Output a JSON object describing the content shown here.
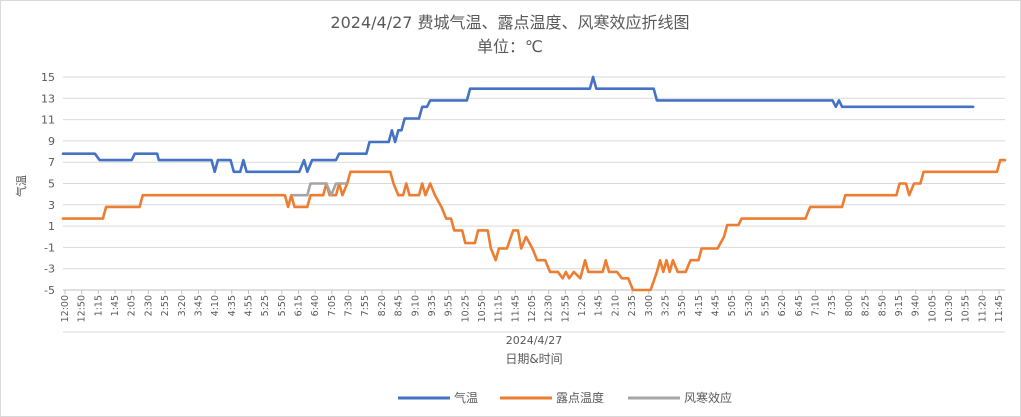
{
  "chart_data": {
    "type": "line",
    "title": "2024/4/27 费城气温、露点温度、风寒效应折线图",
    "subtitle": "单位：℃",
    "xlabel": "日期&时间",
    "x_group_label": "2024/4/27",
    "ylabel": "气温",
    "ylim": [
      -5,
      15
    ],
    "y_ticks": [
      -5,
      -3,
      -1,
      1,
      3,
      5,
      7,
      9,
      11,
      13,
      15
    ],
    "grid": true,
    "legend_position": "bottom",
    "x_tick_labels": [
      "12:00",
      "12:50",
      "1:15",
      "1:45",
      "2:05",
      "2:30",
      "2:55",
      "3:20",
      "3:45",
      "4:10",
      "4:35",
      "4:55",
      "5:25",
      "5:50",
      "6:15",
      "6:40",
      "7:05",
      "7:30",
      "7:55",
      "8:20",
      "8:45",
      "9:10",
      "9:35",
      "9:55",
      "10:25",
      "10:50",
      "11:15",
      "11:45",
      "12:05",
      "12:30",
      "12:55",
      "1:20",
      "1:45",
      "2:10",
      "2:35",
      "3:00",
      "3:25",
      "3:50",
      "4:15",
      "4:45",
      "5:05",
      "5:30",
      "5:55",
      "6:20",
      "6:45",
      "7:10",
      "7:35",
      "8:00",
      "8:25",
      "8:50",
      "9:15",
      "9:40",
      "10:05",
      "10:30",
      "10:55",
      "11:20",
      "11:45"
    ],
    "series": [
      {
        "name": "气温",
        "color": "#4472c4",
        "points": [
          [
            0,
            7.8
          ],
          [
            2,
            7.8
          ],
          [
            2.3,
            7.2
          ],
          [
            4.3,
            7.2
          ],
          [
            4.5,
            7.8
          ],
          [
            5.9,
            7.8
          ],
          [
            6,
            7.2
          ],
          [
            9.3,
            7.2
          ],
          [
            9.5,
            6.1
          ],
          [
            9.7,
            7.2
          ],
          [
            10.5,
            7.2
          ],
          [
            10.7,
            6.1
          ],
          [
            11.1,
            6.1
          ],
          [
            11.3,
            7.2
          ],
          [
            11.5,
            6.1
          ],
          [
            14.8,
            6.1
          ],
          [
            15.1,
            7.2
          ],
          [
            15.3,
            6.1
          ],
          [
            15.6,
            7.2
          ],
          [
            17.1,
            7.2
          ],
          [
            17.3,
            7.8
          ],
          [
            19,
            7.8
          ],
          [
            19.2,
            8.9
          ],
          [
            20.4,
            8.9
          ],
          [
            20.6,
            10
          ],
          [
            20.8,
            8.9
          ],
          [
            21,
            10
          ],
          [
            21.2,
            10
          ],
          [
            21.4,
            11.1
          ],
          [
            22.3,
            11.1
          ],
          [
            22.5,
            12.2
          ],
          [
            22.8,
            12.2
          ],
          [
            23,
            12.8
          ],
          [
            25.3,
            12.8
          ],
          [
            25.5,
            13.9
          ],
          [
            33,
            13.9
          ],
          [
            33.2,
            15
          ],
          [
            33.4,
            13.9
          ],
          [
            37,
            13.9
          ],
          [
            37.2,
            12.8
          ],
          [
            48.2,
            12.8
          ],
          [
            48.4,
            12.2
          ],
          [
            48.6,
            12.8
          ],
          [
            48.8,
            12.2
          ],
          [
            57,
            12.2
          ]
        ]
      },
      {
        "name": "露点温度",
        "color": "#ed7d31",
        "points": [
          [
            0,
            1.7
          ],
          [
            2.5,
            1.7
          ],
          [
            2.7,
            2.8
          ],
          [
            4.8,
            2.8
          ],
          [
            5,
            3.9
          ],
          [
            13.9,
            3.9
          ],
          [
            14.1,
            2.8
          ],
          [
            14.3,
            3.9
          ],
          [
            14.5,
            2.8
          ],
          [
            15.3,
            2.8
          ],
          [
            15.5,
            3.9
          ],
          [
            16.3,
            3.9
          ],
          [
            16.5,
            5
          ],
          [
            16.7,
            3.9
          ],
          [
            17.1,
            3.9
          ],
          [
            17.3,
            5
          ],
          [
            17.5,
            3.9
          ],
          [
            17.8,
            5
          ],
          [
            18,
            6.1
          ],
          [
            20.5,
            6.1
          ],
          [
            20.7,
            5
          ],
          [
            21,
            3.9
          ],
          [
            21.3,
            3.9
          ],
          [
            21.5,
            5
          ],
          [
            21.7,
            3.9
          ],
          [
            22.3,
            3.9
          ],
          [
            22.5,
            5
          ],
          [
            22.7,
            3.9
          ],
          [
            23,
            5
          ],
          [
            23.3,
            3.9
          ],
          [
            23.7,
            2.8
          ],
          [
            24,
            1.7
          ],
          [
            24.3,
            1.7
          ],
          [
            24.5,
            0.6
          ],
          [
            25,
            0.6
          ],
          [
            25.2,
            -0.6
          ],
          [
            25.8,
            -0.6
          ],
          [
            26,
            0.6
          ],
          [
            26.6,
            0.6
          ],
          [
            26.8,
            -1.1
          ],
          [
            27.1,
            -2.2
          ],
          [
            27.3,
            -1.1
          ],
          [
            27.8,
            -1.1
          ],
          [
            28.2,
            0.6
          ],
          [
            28.5,
            0.6
          ],
          [
            28.7,
            -1.1
          ],
          [
            29,
            0
          ],
          [
            29.4,
            -1.1
          ],
          [
            29.7,
            -2.2
          ],
          [
            30.2,
            -2.2
          ],
          [
            30.5,
            -3.3
          ],
          [
            31,
            -3.3
          ],
          [
            31.3,
            -3.9
          ],
          [
            31.5,
            -3.3
          ],
          [
            31.7,
            -3.9
          ],
          [
            32,
            -3.3
          ],
          [
            32.4,
            -3.9
          ],
          [
            32.7,
            -2.2
          ],
          [
            32.9,
            -3.3
          ],
          [
            33.8,
            -3.3
          ],
          [
            34,
            -2.2
          ],
          [
            34.2,
            -3.3
          ],
          [
            34.7,
            -3.3
          ],
          [
            35,
            -3.9
          ],
          [
            35.4,
            -3.9
          ],
          [
            35.7,
            -5
          ],
          [
            36.8,
            -5
          ],
          [
            37.2,
            -3.3
          ],
          [
            37.4,
            -2.2
          ],
          [
            37.6,
            -3.3
          ],
          [
            37.8,
            -2.2
          ],
          [
            38,
            -3.3
          ],
          [
            38.2,
            -2.2
          ],
          [
            38.5,
            -3.3
          ],
          [
            39,
            -3.3
          ],
          [
            39.3,
            -2.2
          ],
          [
            39.8,
            -2.2
          ],
          [
            40,
            -1.1
          ],
          [
            41,
            -1.1
          ],
          [
            41.4,
            0
          ],
          [
            41.6,
            1.1
          ],
          [
            42.3,
            1.1
          ],
          [
            42.5,
            1.7
          ],
          [
            46.5,
            1.7
          ],
          [
            46.8,
            2.8
          ],
          [
            48.8,
            2.8
          ],
          [
            49,
            3.9
          ],
          [
            52.2,
            3.9
          ],
          [
            52.4,
            5
          ],
          [
            52.8,
            5
          ],
          [
            53,
            3.9
          ],
          [
            53.3,
            5
          ],
          [
            53.7,
            5
          ],
          [
            53.9,
            6.1
          ],
          [
            58.5,
            6.1
          ],
          [
            58.7,
            7.2
          ],
          [
            59,
            7.2
          ]
        ]
      },
      {
        "name": "风寒效应",
        "color": "#a5a5a5",
        "points": [
          [
            14.4,
            3.9
          ],
          [
            15.3,
            3.9
          ],
          [
            15.5,
            5
          ],
          [
            16.5,
            5
          ],
          [
            16.8,
            3.9
          ],
          [
            17.1,
            5
          ],
          [
            17.7,
            5
          ]
        ]
      }
    ]
  }
}
